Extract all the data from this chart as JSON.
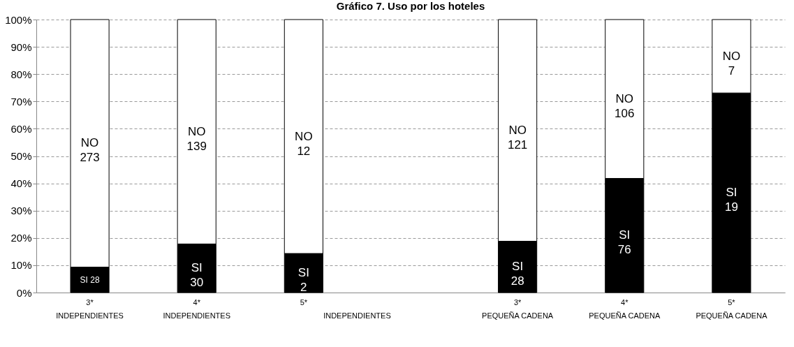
{
  "chart_data": {
    "type": "bar",
    "stacked": true,
    "title": "Gráfico 7. Uso por los hoteles",
    "categories": [
      "3*",
      "4*",
      "5*",
      null,
      "3*",
      "4*",
      "5*"
    ],
    "annotations": [
      "INDEPENDIENTES",
      "INDEPENDIENTES",
      "INDEPENDIENTES",
      "PEQUEÑA CADENA",
      "PEQUEÑA CADENA",
      "PEQUEÑA CADENA"
    ],
    "series": [
      {
        "color": "#000000",
        "values": [
          9.3,
          17.8,
          14.3,
          null,
          18.8,
          41.8,
          73.1
        ],
        "value_labels": [
          "SI 28",
          "SI\n30",
          "SI\n2",
          null,
          "SI\n28",
          "SI\n76",
          "SI\n19"
        ]
      },
      {
        "color": "#ffffff",
        "values": [
          90.7,
          82.2,
          85.7,
          null,
          81.2,
          58.2,
          26.9
        ],
        "value_labels": [
          "NO\n273",
          "NO\n139",
          "NO\n12",
          null,
          "NO\n121",
          "NO\n106",
          "NO\n7"
        ]
      }
    ],
    "ylim": [
      0,
      100
    ],
    "yticks": [
      {
        "value": 0,
        "label": "0%"
      },
      {
        "value": 10,
        "label": "10%"
      },
      {
        "value": 20,
        "label": "20%"
      },
      {
        "value": 30,
        "label": "30%"
      },
      {
        "value": 40,
        "label": "40%"
      },
      {
        "value": 50,
        "label": "50%"
      },
      {
        "value": 60,
        "label": "60%"
      },
      {
        "value": 70,
        "label": "70%"
      },
      {
        "value": 80,
        "label": "80%"
      },
      {
        "value": 90,
        "label": "90%"
      },
      {
        "value": 100,
        "label": "100%"
      }
    ],
    "grid": "y"
  }
}
